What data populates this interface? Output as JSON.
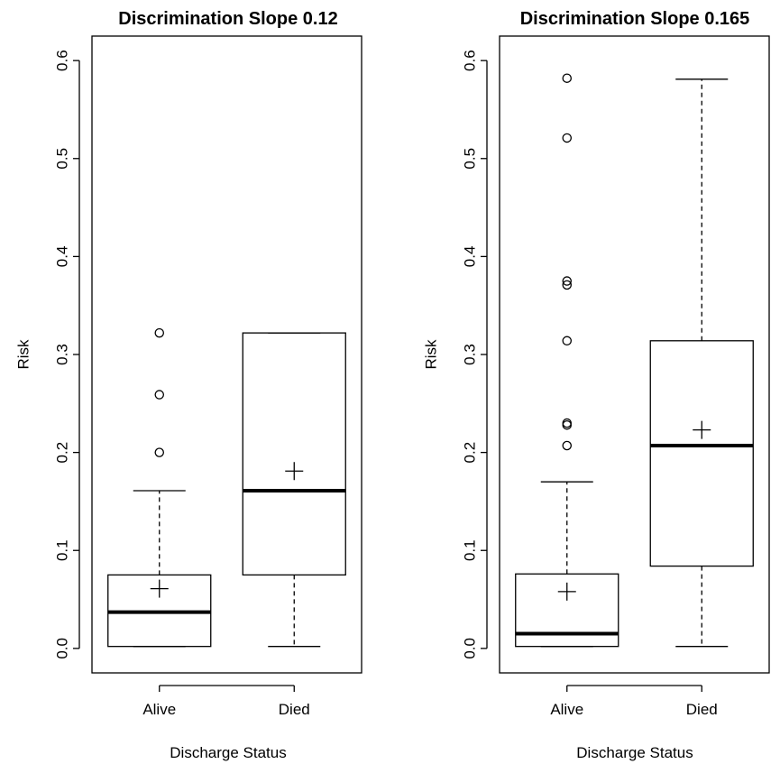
{
  "chart_data": [
    {
      "type": "box",
      "title": "Discrimination Slope 0.12",
      "xlabel": "Discharge Status",
      "ylabel": "Risk",
      "ylim": [
        -0.025,
        0.625
      ],
      "yticks": [
        "0.0",
        "0.1",
        "0.2",
        "0.3",
        "0.4",
        "0.5",
        "0.6"
      ],
      "categories": [
        "Alive",
        "Died"
      ],
      "boxes": [
        {
          "category": "Alive",
          "whisker_low": 0.002,
          "q1": 0.002,
          "median": 0.037,
          "q3": 0.075,
          "whisker_high": 0.161,
          "mean": 0.061,
          "outliers": [
            0.2,
            0.259,
            0.322
          ]
        },
        {
          "category": "Died",
          "whisker_low": 0.002,
          "q1": 0.075,
          "median": 0.161,
          "q3": 0.322,
          "whisker_high": 0.322,
          "mean": 0.181,
          "outliers": []
        }
      ]
    },
    {
      "type": "box",
      "title": "Discrimination Slope 0.165",
      "xlabel": "Discharge Status",
      "ylabel": "Risk",
      "ylim": [
        -0.025,
        0.625
      ],
      "yticks": [
        "0.0",
        "0.1",
        "0.2",
        "0.3",
        "0.4",
        "0.5",
        "0.6"
      ],
      "categories": [
        "Alive",
        "Died"
      ],
      "boxes": [
        {
          "category": "Alive",
          "whisker_low": 0.002,
          "q1": 0.002,
          "median": 0.015,
          "q3": 0.076,
          "whisker_high": 0.17,
          "mean": 0.058,
          "outliers": [
            0.207,
            0.228,
            0.23,
            0.314,
            0.371,
            0.375,
            0.521,
            0.582
          ]
        },
        {
          "category": "Died",
          "whisker_low": 0.002,
          "q1": 0.084,
          "median": 0.207,
          "q3": 0.314,
          "whisker_high": 0.581,
          "mean": 0.223,
          "outliers": []
        }
      ]
    }
  ]
}
